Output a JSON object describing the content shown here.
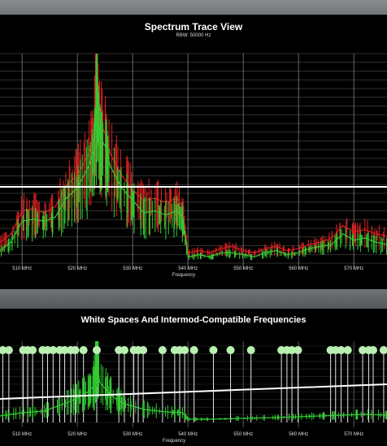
{
  "trace_panel": {
    "title": "Spectrum Trace View",
    "subtitle": "RBW: 50000 Hz",
    "xlabel": "Frequency"
  },
  "white_space_panel": {
    "title": "White Spaces And Intermod-Compatible Frequencies",
    "xlabel": "Frequency"
  },
  "colors": {
    "background": "#000000",
    "grid": "#bdbdbd",
    "trace_red": "#e02020",
    "trace_green": "#33cc33",
    "threshold": "#ffffff",
    "marker": "#b8f0b0"
  },
  "chart_data": [
    {
      "type": "line",
      "x_ticks": [
        "510 MHz",
        "520 MHz",
        "530 MHz",
        "540 MHz",
        "550 MHz",
        "560 MHz",
        "570 MHz"
      ],
      "x_tick_values": [
        510,
        520,
        530,
        540,
        550,
        560,
        570
      ],
      "xlim": [
        506,
        576
      ],
      "series": [
        {
          "color": "red",
          "x": [
            506,
            508,
            510,
            512,
            514,
            516,
            518,
            520,
            522,
            523,
            523.5,
            524,
            525,
            526,
            528,
            530,
            532,
            534,
            536,
            538,
            539,
            540,
            542,
            544,
            546,
            548,
            550,
            552,
            554,
            556,
            558,
            560,
            562,
            564,
            566,
            568,
            570,
            572,
            574,
            576
          ],
          "y": [
            0.1,
            0.14,
            0.25,
            0.26,
            0.24,
            0.27,
            0.37,
            0.42,
            0.52,
            0.6,
            1.0,
            0.68,
            0.62,
            0.52,
            0.42,
            0.35,
            0.3,
            0.31,
            0.29,
            0.31,
            0.27,
            0.05,
            0.06,
            0.05,
            0.07,
            0.08,
            0.06,
            0.05,
            0.07,
            0.08,
            0.06,
            0.07,
            0.09,
            0.1,
            0.12,
            0.18,
            0.15,
            0.16,
            0.14,
            0.13
          ]
        },
        {
          "color": "green",
          "x": [
            506,
            508,
            510,
            512,
            514,
            516,
            518,
            520,
            522,
            523,
            523.5,
            524,
            525,
            526,
            528,
            530,
            532,
            534,
            536,
            538,
            539,
            540,
            542,
            544,
            546,
            548,
            550,
            552,
            554,
            556,
            558,
            560,
            562,
            564,
            566,
            568,
            570,
            572,
            574,
            576
          ],
          "y": [
            0.06,
            0.1,
            0.2,
            0.21,
            0.2,
            0.22,
            0.31,
            0.36,
            0.46,
            0.54,
            0.85,
            0.6,
            0.56,
            0.46,
            0.36,
            0.3,
            0.24,
            0.25,
            0.23,
            0.25,
            0.22,
            0.03,
            0.04,
            0.03,
            0.05,
            0.05,
            0.04,
            0.03,
            0.05,
            0.06,
            0.04,
            0.05,
            0.07,
            0.08,
            0.09,
            0.14,
            0.11,
            0.12,
            0.1,
            0.09
          ]
        }
      ],
      "threshold_line": true,
      "grid": true
    },
    {
      "type": "scatter",
      "x_ticks": [
        "510 MHz",
        "520 MHz",
        "530 MHz",
        "540 MHz",
        "550 MHz",
        "560 MHz",
        "570 MHz"
      ],
      "x_tick_values": [
        510,
        520,
        530,
        540,
        550,
        560,
        570
      ],
      "xlim": [
        506,
        576
      ],
      "markers_x": [
        506.5,
        507.6,
        510.2,
        511.0,
        511.9,
        513.7,
        514.6,
        515.6,
        516.8,
        517.7,
        518.8,
        519.6,
        521.1,
        523.5,
        527.5,
        528.5,
        530.2,
        531.0,
        531.9,
        535.4,
        537.6,
        538.5,
        539.4,
        541.1,
        544.6,
        547.7,
        551.4,
        556.9,
        557.9,
        558.8,
        559.9,
        565.8,
        566.7,
        567.7,
        568.9,
        571.6,
        572.7,
        573.5,
        575.4
      ],
      "trace": {
        "color": "green",
        "x": [
          506,
          510,
          514,
          518,
          520,
          522,
          523,
          523.5,
          524,
          526,
          528,
          532,
          536,
          539,
          540,
          544,
          550,
          556,
          560,
          564,
          568,
          572,
          576
        ],
        "y": [
          0.08,
          0.12,
          0.14,
          0.24,
          0.3,
          0.38,
          0.45,
          0.85,
          0.5,
          0.34,
          0.24,
          0.16,
          0.13,
          0.12,
          0.04,
          0.04,
          0.05,
          0.06,
          0.07,
          0.08,
          0.09,
          0.1,
          0.09
        ]
      },
      "threshold_line": true,
      "grid": true
    }
  ]
}
